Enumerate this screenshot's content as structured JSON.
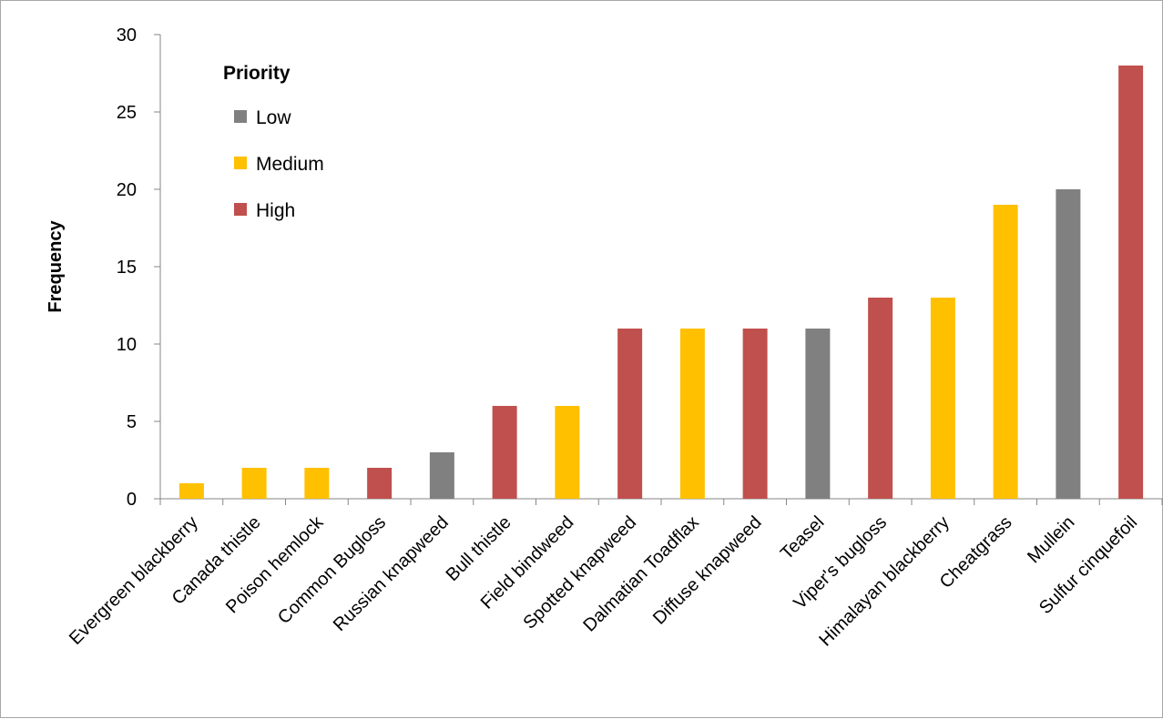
{
  "chart_data": {
    "type": "bar",
    "title": "",
    "xlabel": "",
    "ylabel": "Frequency",
    "ylim": [
      0,
      30
    ],
    "yticks": [
      0,
      5,
      10,
      15,
      20,
      25,
      30
    ],
    "grid": false,
    "legend": {
      "title": "Priority",
      "placement": "top-left",
      "entries": [
        {
          "name": "Low",
          "color": "#808080"
        },
        {
          "name": "Medium",
          "color": "#ffc000"
        },
        {
          "name": "High",
          "color": "#c0504d"
        }
      ]
    },
    "categories": [
      "Evergreen blackberry",
      "Canada thistle",
      "Poison hemlock",
      "Common Bugloss",
      "Russian knapweed",
      "Bull thistle",
      "Field bindweed",
      "Spotted knapweed",
      "Dalmatian Toadflax",
      "Diffuse knapweed",
      "Teasel",
      "Viper's bugloss",
      "Himalayan blackberry",
      "Cheatgrass",
      "Mullein",
      "Sulfur cinquefoil"
    ],
    "values": [
      1,
      2,
      2,
      2,
      3,
      6,
      6,
      11,
      11,
      11,
      11,
      13,
      13,
      19,
      20,
      28
    ],
    "priority": [
      "Medium",
      "Medium",
      "Medium",
      "High",
      "Low",
      "High",
      "Medium",
      "High",
      "Medium",
      "High",
      "Low",
      "High",
      "Medium",
      "Medium",
      "Low",
      "High"
    ]
  }
}
